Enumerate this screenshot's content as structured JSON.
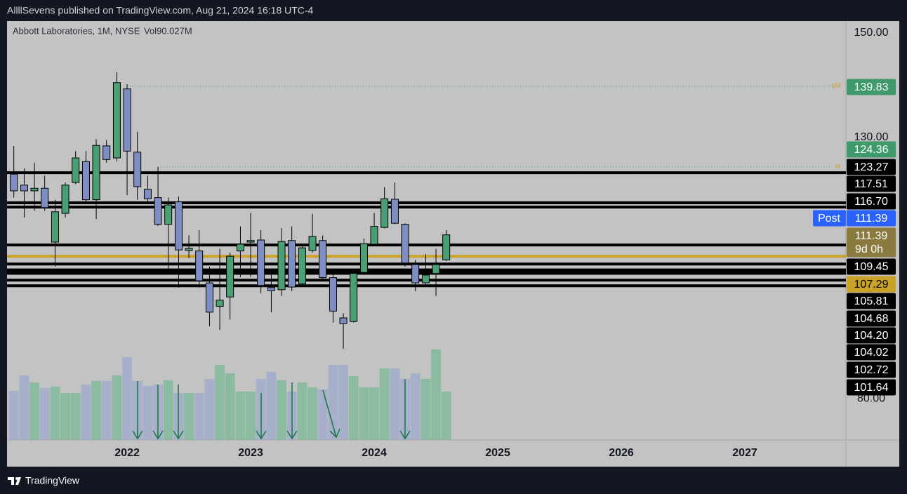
{
  "chart_data": {
    "type": "candlestick",
    "header": "AllllSevens published on TradingView.com, Aug 21, 2024 16:18 UTC-4",
    "title": "Abbott Laboratories, 1M, NYSE",
    "volume_label": "Vol90.027M",
    "footer": "TradingView",
    "x": [
      2021.083,
      2021.167,
      2021.25,
      2021.333,
      2021.417,
      2021.5,
      2021.583,
      2021.667,
      2021.75,
      2021.833,
      2021.917,
      2022,
      2022.083,
      2022.167,
      2022.25,
      2022.333,
      2022.417,
      2022.5,
      2022.583,
      2022.667,
      2022.75,
      2022.833,
      2022.917,
      2023,
      2023.083,
      2023.167,
      2023.25,
      2023.333,
      2023.417,
      2023.5,
      2023.583,
      2023.667,
      2023.75,
      2023.833,
      2023.917,
      2024,
      2024.083,
      2024.167,
      2024.25,
      2024.333,
      2024.417,
      2024.5,
      2024.583
    ],
    "open": [
      123.0,
      120.9,
      119.8,
      120.3,
      110.0,
      115.5,
      121.4,
      125.4,
      118.1,
      128.4,
      126.1,
      139.3,
      127.2,
      120.1,
      118.5,
      113.4,
      117.7,
      108.4,
      108.3,
      102.2,
      97.7,
      99.5,
      108.3,
      110.0,
      110.4,
      101.3,
      100.9,
      110.3,
      102.0,
      108.4,
      110.3,
      103.2,
      95.5,
      94.8,
      104.2,
      109.6,
      112.8,
      118.2,
      113.4,
      105.7,
      102.2,
      104.0,
      106.6
    ],
    "high": [
      128.4,
      124.1,
      125.2,
      122.7,
      118.1,
      121.4,
      127.4,
      127.4,
      129.7,
      129.5,
      142.5,
      140.2,
      131.1,
      122.7,
      124.4,
      118.5,
      118.7,
      111.3,
      112.3,
      105.3,
      108.7,
      108.0,
      113.0,
      115.6,
      112.3,
      104.9,
      112.7,
      113.0,
      109.3,
      115.4,
      111.3,
      103.8,
      96.4,
      104.6,
      110.7,
      115.6,
      120.5,
      121.4,
      113.6,
      106.6,
      107.7,
      108.7,
      112.3
    ],
    "low": [
      118.5,
      114.7,
      116.0,
      116.0,
      105.3,
      114.7,
      121.1,
      117.4,
      114.4,
      125.2,
      125.4,
      119.0,
      118.1,
      117.4,
      113.1,
      104.6,
      101.3,
      106.9,
      101.3,
      93.9,
      93.2,
      95.2,
      103.3,
      103.3,
      100.2,
      96.6,
      99.7,
      100.6,
      101.5,
      108.0,
      102.6,
      94.6,
      89.6,
      94.6,
      104.0,
      109.3,
      112.6,
      113.4,
      105.3,
      100.6,
      101.8,
      99.7,
      106.4
    ],
    "close": [
      119.8,
      119.8,
      120.3,
      116.6,
      115.8,
      120.9,
      126.1,
      118.1,
      128.5,
      125.8,
      140.5,
      127.4,
      120.6,
      118.3,
      113.4,
      117.1,
      108.5,
      108.8,
      102.6,
      96.6,
      98.9,
      107.3,
      109.6,
      110.3,
      101.7,
      100.7,
      110.1,
      101.4,
      108.9,
      111.1,
      103.2,
      96.8,
      94.4,
      104.0,
      109.7,
      113.0,
      118.3,
      113.6,
      106.0,
      102.2,
      103.7,
      105.7,
      111.39
    ],
    "volume": [
      91.4,
      120.1,
      107.0,
      96.6,
      99.2,
      87.4,
      87.4,
      103.1,
      109.6,
      109.6,
      120.1,
      154.0,
      109.6,
      100.5,
      103.1,
      110.9,
      87.4,
      87.4,
      87.4,
      113.5,
      139.6,
      124.0,
      90.0,
      90.0,
      113.5,
      126.6,
      110.9,
      90.0,
      107.0,
      97.9,
      94.0,
      139.6,
      139.6,
      118.8,
      97.9,
      97.9,
      133.1,
      133.1,
      113.5,
      124.0,
      113.5,
      168.3,
      90.027
    ],
    "up_color": "#4aa074",
    "down_color": "#7f8ec2",
    "xlim": [
      2021.028,
      2027.818
    ],
    "xticks": [
      2022,
      2023,
      2024,
      2025,
      2026,
      2027
    ],
    "ylim": [
      72.15,
      152.28
    ],
    "yticks": [
      {
        "value": 150,
        "label": "150.00"
      },
      {
        "value": 130,
        "label": "130.00"
      },
      {
        "value": 80,
        "label": "80.00"
      }
    ],
    "levels": [
      {
        "value": 139.83,
        "label": "139.83",
        "color": "#3f9a6b",
        "text_color": "#ffffff",
        "style": "dotted",
        "marker": "6M"
      },
      {
        "value": 124.36,
        "label": "124.36",
        "color": "#3f9a6b",
        "text_color": "#ffffff",
        "style": "dotted",
        "marker": "M"
      },
      {
        "value": 123.27,
        "label": "123.27",
        "color": "#000000",
        "text_color": "#ffffff",
        "style": "solid"
      },
      {
        "value": 117.51,
        "label": "117.51",
        "color": "#000000",
        "text_color": "#ffffff",
        "style": "solid"
      },
      {
        "value": 116.7,
        "label": "116.70",
        "color": "#000000",
        "text_color": "#ffffff",
        "style": "solid"
      },
      {
        "value": 111.39,
        "label": "111.39",
        "color": "#2962ff",
        "text_color": "#ffffff",
        "style": "none",
        "tag": "Post"
      },
      {
        "value": 111.39,
        "label": "111.39",
        "color": "#8a7a3e",
        "text_color": "#ffffff",
        "style": "none",
        "sub": "9d 0h"
      },
      {
        "value": 109.45,
        "label": "109.45",
        "color": "#000000",
        "text_color": "#ffffff",
        "style": "solid"
      },
      {
        "value": 107.29,
        "label": "107.29",
        "color": "#c9a227",
        "text_color": "#000000",
        "style": "solid"
      },
      {
        "value": 105.81,
        "label": "105.81",
        "color": "#000000",
        "text_color": "#ffffff",
        "style": "solid"
      },
      {
        "value": 104.68,
        "label": "104.68",
        "color": "#000000",
        "text_color": "#ffffff",
        "style": "solid"
      },
      {
        "value": 104.2,
        "label": "104.20",
        "color": "#000000",
        "text_color": "#ffffff",
        "style": "solid"
      },
      {
        "value": 104.02,
        "label": "104.02",
        "color": "#000000",
        "text_color": "#ffffff",
        "style": "solid"
      },
      {
        "value": 102.72,
        "label": "102.72",
        "color": "#000000",
        "text_color": "#ffffff",
        "style": "solid"
      },
      {
        "value": 101.64,
        "label": "101.64",
        "color": "#000000",
        "text_color": "#ffffff",
        "style": "solid"
      }
    ]
  }
}
